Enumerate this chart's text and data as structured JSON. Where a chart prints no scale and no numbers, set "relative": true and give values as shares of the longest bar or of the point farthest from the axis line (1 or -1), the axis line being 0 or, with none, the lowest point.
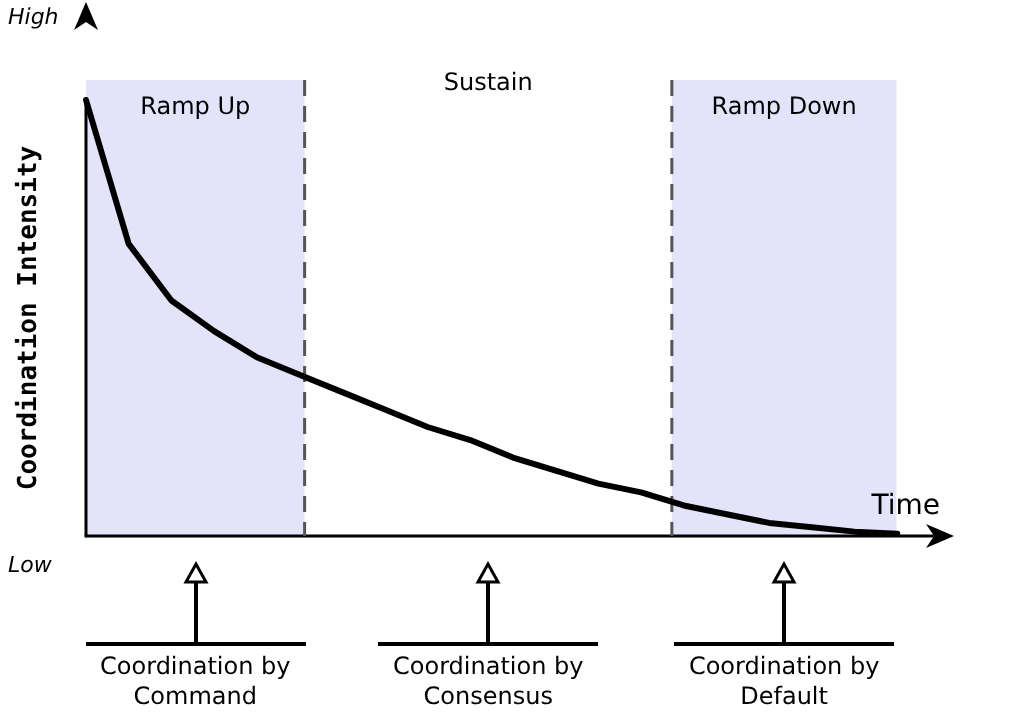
{
  "chart_data": {
    "type": "line",
    "xlabel": "Time",
    "ylabel": "Coordination Intensity",
    "categories": [
      null,
      null,
      null,
      null,
      null,
      null,
      null,
      null,
      null,
      null,
      null,
      null,
      null,
      null,
      null,
      null,
      null,
      null,
      null,
      null,
      null
    ],
    "series": [
      {
        "color": "#000000",
        "values": [
          1,
          0.67,
          0.54,
          0.47,
          0.41,
          0.37,
          0.33,
          0.29,
          0.25,
          0.22,
          0.18,
          0.15,
          0.12,
          0.1,
          0.07,
          0.05,
          0.03,
          0.02,
          0.01,
          0.005,
          null
        ]
      }
    ],
    "relative": true,
    "marker": "none",
    "line_style": "solid",
    "annotations": [
      "High",
      "Low",
      "Ramp Up",
      "Sustain",
      "Ramp Down",
      "Coordination by Command",
      "Coordination by Consensus",
      "Coordination by Default"
    ]
  }
}
